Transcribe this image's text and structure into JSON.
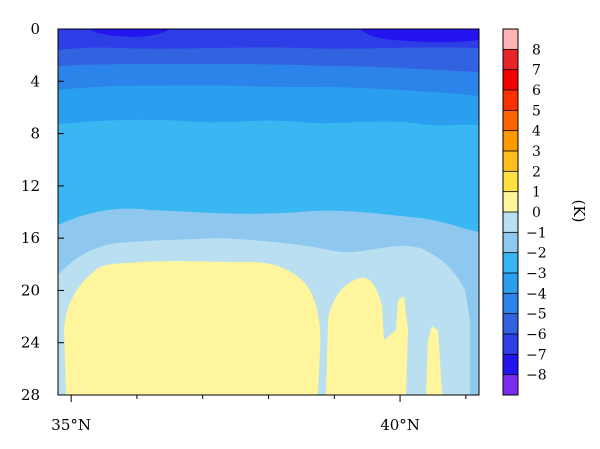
{
  "chart_data": {
    "type": "heatmap",
    "title": "",
    "xlabel": "",
    "ylabel": "",
    "x_tick_labels": [
      "35°N",
      "40°N"
    ],
    "x_tick_values": [
      35,
      40
    ],
    "xlim": [
      34.8,
      41.2
    ],
    "y_tick_labels": [
      "0",
      "4",
      "8",
      "12",
      "16",
      "20",
      "24",
      "28"
    ],
    "y_tick_values": [
      0,
      4,
      8,
      12,
      16,
      20,
      24,
      28
    ],
    "ylim": [
      0,
      28
    ],
    "y_inverted": true,
    "colorbar": {
      "label": "(K)",
      "tick_labels": [
        "8",
        "7",
        "6",
        "5",
        "4",
        "3",
        "2",
        "1",
        "0",
        "−1",
        "−2",
        "−3",
        "−4",
        "−5",
        "−6",
        "−7",
        "−8"
      ],
      "levels": [
        {
          "range": [
            8,
            9
          ],
          "color": "#ffb4b4"
        },
        {
          "range": [
            7,
            8
          ],
          "color": "#e8242a"
        },
        {
          "range": [
            6,
            7
          ],
          "color": "#f20000"
        },
        {
          "range": [
            5,
            6
          ],
          "color": "#ff3000"
        },
        {
          "range": [
            4,
            5
          ],
          "color": "#ff6400"
        },
        {
          "range": [
            3,
            4
          ],
          "color": "#ff9a00"
        },
        {
          "range": [
            2,
            3
          ],
          "color": "#ffbe1e"
        },
        {
          "range": [
            1,
            2
          ],
          "color": "#ffe146"
        },
        {
          "range": [
            0,
            1
          ],
          "color": "#fff59d"
        },
        {
          "range": [
            -1,
            0
          ],
          "color": "#b9dff1"
        },
        {
          "range": [
            -2,
            -1
          ],
          "color": "#8ec8ef"
        },
        {
          "range": [
            -3,
            -2
          ],
          "color": "#38b7f3"
        },
        {
          "range": [
            -4,
            -3
          ],
          "color": "#2a9ff0"
        },
        {
          "range": [
            -5,
            -4
          ],
          "color": "#2c84ea"
        },
        {
          "range": [
            -6,
            -5
          ],
          "color": "#3362e0"
        },
        {
          "range": [
            -7,
            -6
          ],
          "color": "#2d3ee6"
        },
        {
          "range": [
            -8,
            -7
          ],
          "color": "#2414f0"
        },
        {
          "range": [
            -9,
            -8
          ],
          "color": "#7b2bf0"
        }
      ]
    },
    "field_regions": [
      {
        "value_range": [
          -7,
          -6
        ],
        "y": [
          0,
          2.3
        ],
        "note": "top band, darker (-8 to -7) patches near 0-1"
      },
      {
        "value_range": [
          -6,
          -5
        ],
        "y": [
          1.5,
          4.3
        ]
      },
      {
        "value_range": [
          -5,
          -4
        ],
        "y": [
          2.5,
          12.5
        ]
      },
      {
        "value_range": [
          -4,
          -3
        ],
        "y": [
          6.5,
          18
        ]
      },
      {
        "value_range": [
          -3,
          -2
        ],
        "y": [
          12,
          19
        ]
      },
      {
        "value_range": [
          -2,
          -1
        ],
        "y": [
          14,
          28
        ],
        "note": "near x edges"
      },
      {
        "value_range": [
          -1,
          0
        ],
        "y": [
          16.5,
          28
        ]
      },
      {
        "value_range": [
          0,
          1
        ],
        "y": [
          17.5,
          28
        ],
        "x": [
          34.8,
          38.7
        ],
        "note": "second warm patch 39.0-40.5°N below 19"
      }
    ]
  }
}
